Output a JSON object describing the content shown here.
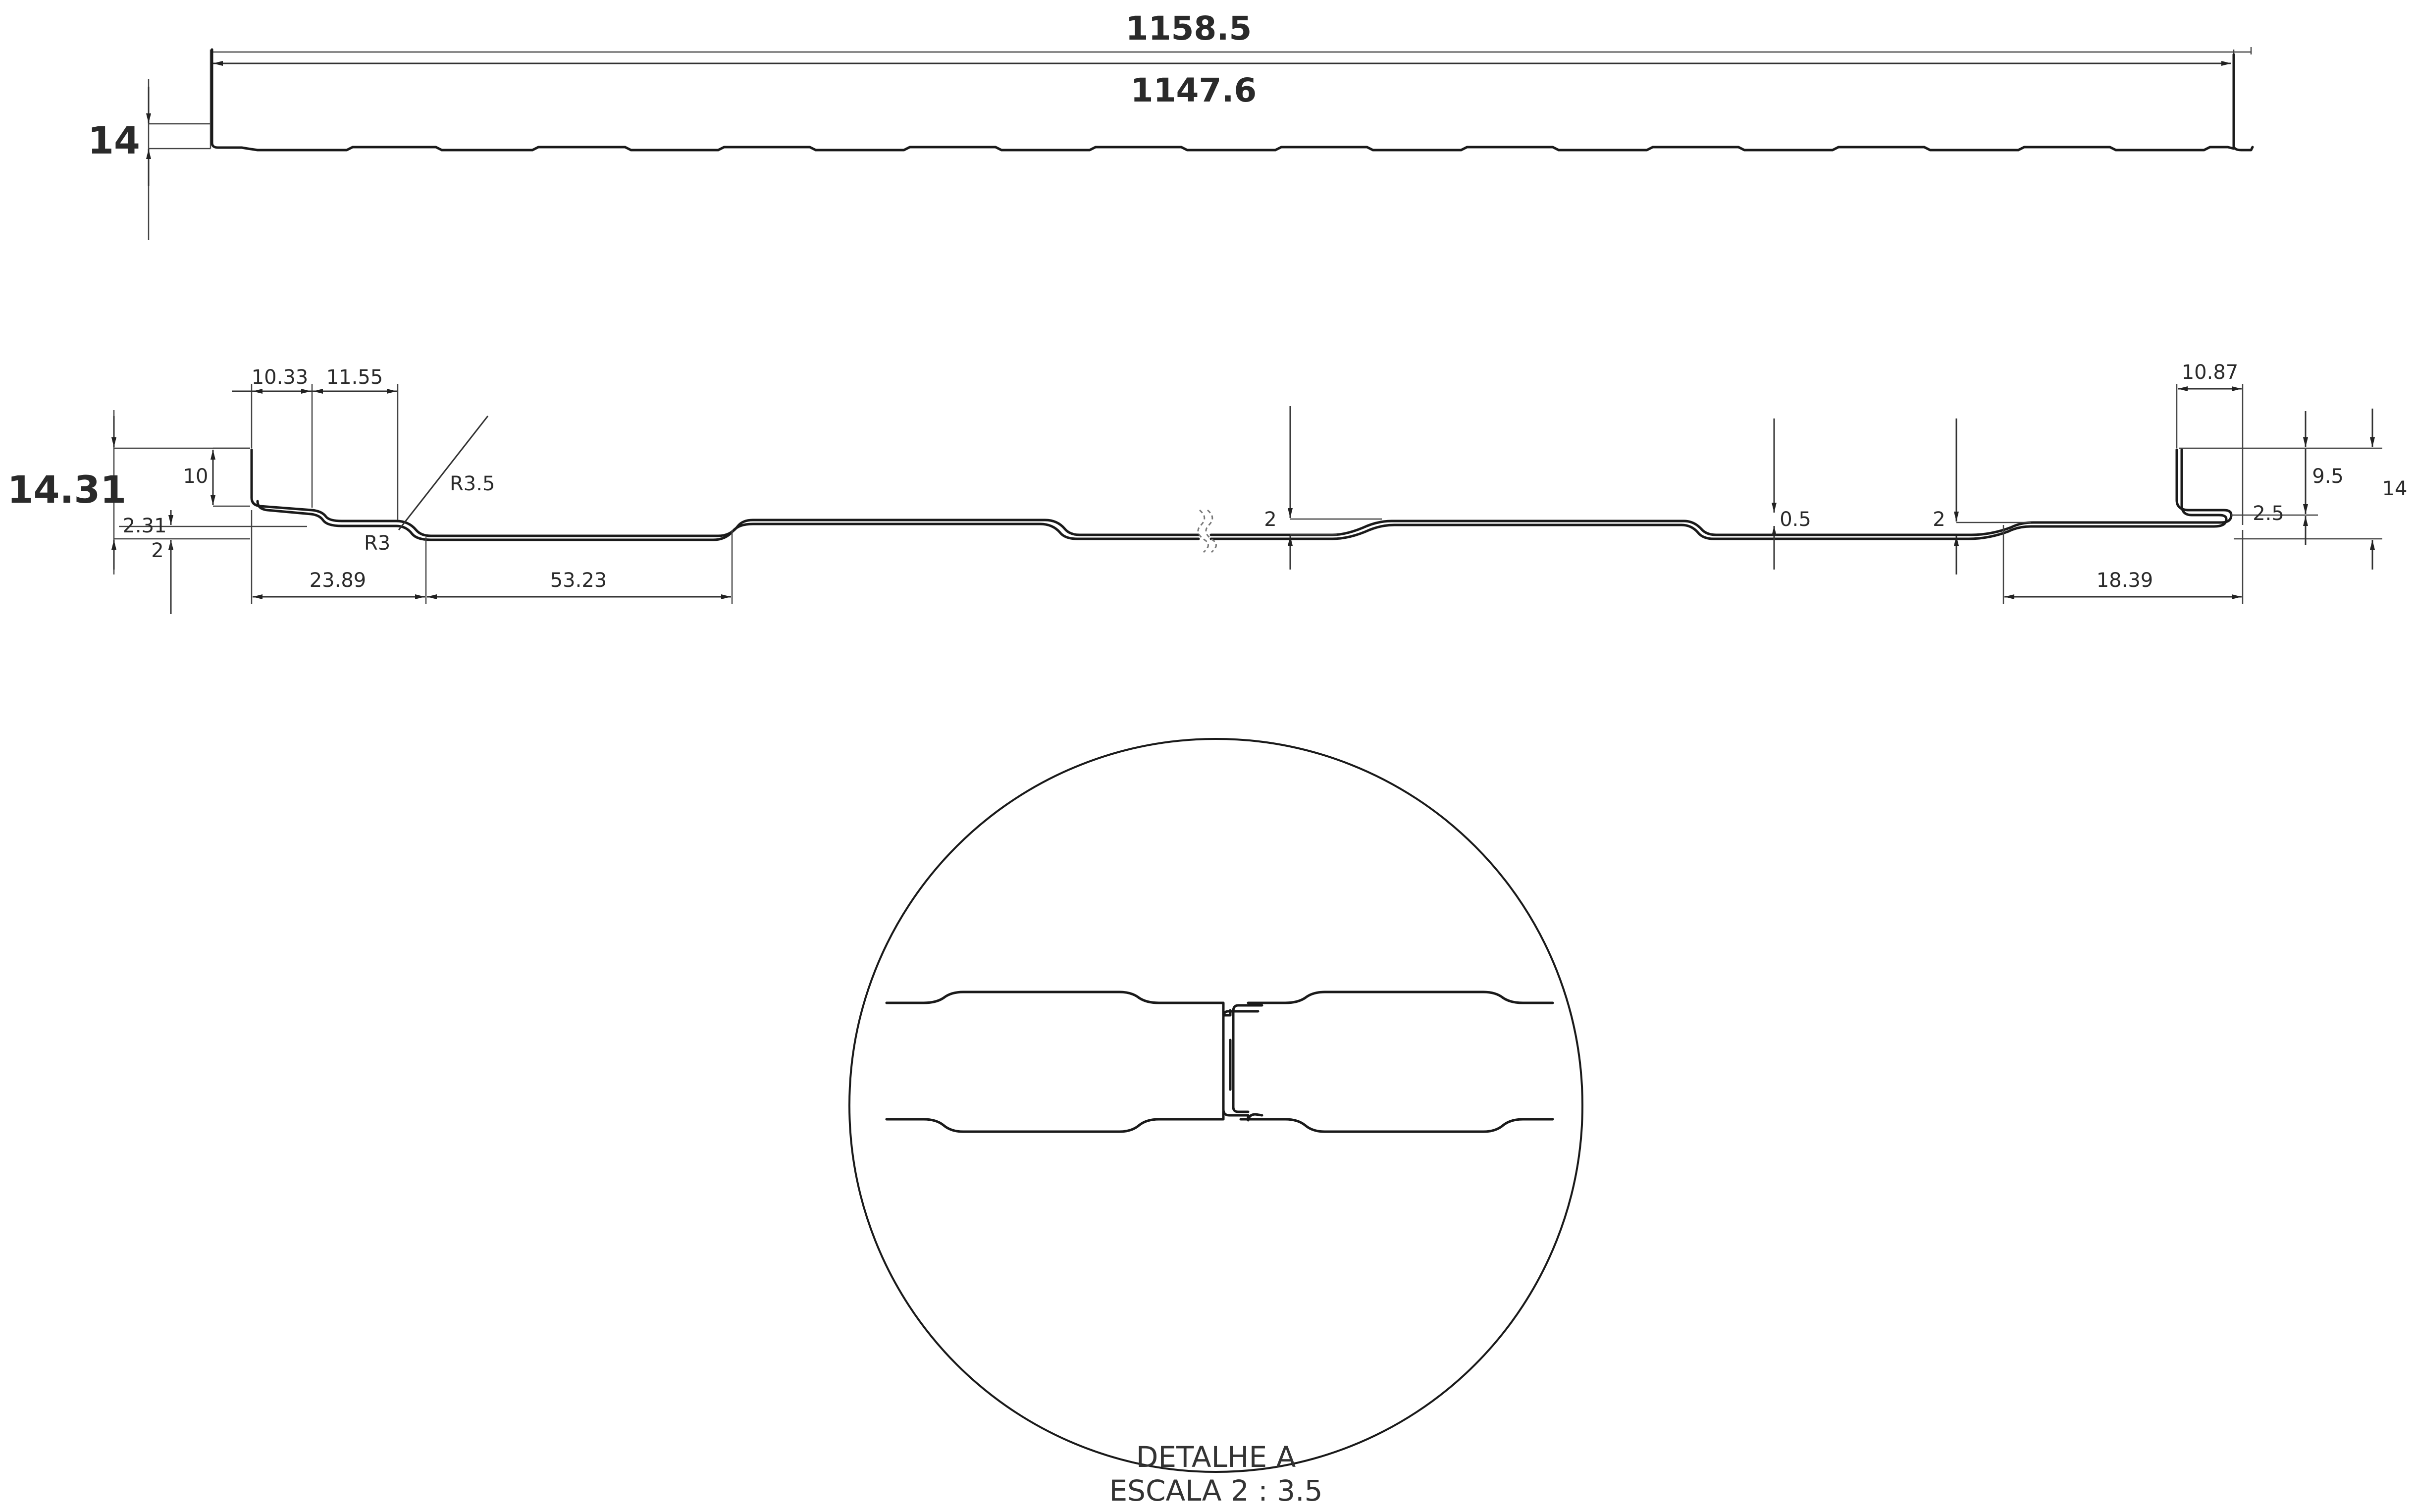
{
  "top_view": {
    "overall_width": "1158.5",
    "useful_width": "1147.6",
    "height": "14"
  },
  "section_view": {
    "total_height": "14.31",
    "dims": {
      "d_10_33": "10.33",
      "d_11_55": "11.55",
      "d_10": "10",
      "d_2_31": "2.31",
      "d_2_left": "2",
      "d_r3_5": "R3.5",
      "d_r3": "R3",
      "d_23_89": "23.89",
      "d_53_23": "53.23",
      "d_2_mid": "2",
      "d_0_5": "0.5",
      "d_2_right": "2",
      "d_10_87": "10.87",
      "d_9_5": "9.5",
      "d_14": "14",
      "d_2_5": "2.5",
      "d_18_39": "18.39"
    }
  },
  "detail": {
    "title": "DETALHE A",
    "scale": "ESCALA 2 : 3.5"
  }
}
